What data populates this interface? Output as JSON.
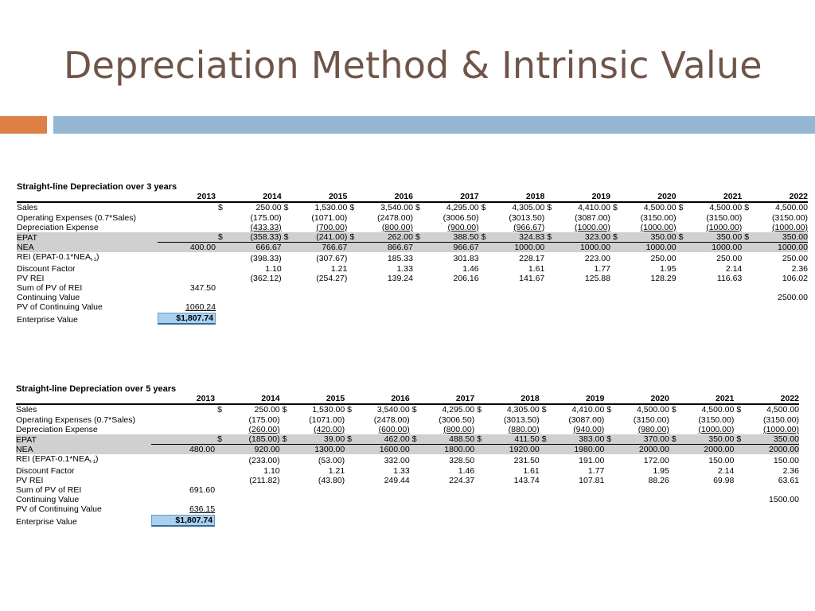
{
  "slide": {
    "title": "Depreciation Method & Intrinsic Value"
  },
  "colors": {
    "title": "#6f5548",
    "accent_orange": "#dd8046",
    "accent_blue": "#94b6d2",
    "shade": "#d0d0d0",
    "highlight": "#a8d0f0"
  },
  "tables": [
    {
      "title": "Straight-line Depreciation over 3 years",
      "years": [
        "2013",
        "2014",
        "2015",
        "2016",
        "2017",
        "2018",
        "2019",
        "2020",
        "2021",
        "2022"
      ],
      "rows": {
        "sales": {
          "label": "Sales",
          "values": [
            "250.00",
            "1,530.00",
            "3,540.00",
            "4,295.00",
            "4,305.00",
            "4,410.00",
            "4,500.00",
            "4,500.00",
            "4,500.00"
          ]
        },
        "opex": {
          "label": "Operating Expenses (0.7*Sales)",
          "values": [
            "(175.00)",
            "(1071.00)",
            "(2478.00)",
            "(3006.50)",
            "(3013.50)",
            "(3087.00)",
            "(3150.00)",
            "(3150.00)",
            "(3150.00)"
          ]
        },
        "dep": {
          "label": "Depreciation Expense",
          "values": [
            "(433.33)",
            "(700.00)",
            "(800.00)",
            "(900.00)",
            "(966.67)",
            "(1000.00)",
            "(1000.00)",
            "(1000.00)",
            "(1000.00)"
          ]
        },
        "epat": {
          "label": "EPAT",
          "values": [
            "(358.33)",
            "(241.00)",
            "262.00",
            "388.50",
            "324.83",
            "323.00",
            "350.00",
            "350.00",
            "350.00"
          ]
        },
        "nea": {
          "label": "NEA",
          "first": "400.00",
          "values": [
            "666.67",
            "766.67",
            "866.67",
            "966.67",
            "1000.00",
            "1000.00",
            "1000.00",
            "1000.00",
            "1000.00"
          ]
        },
        "rei": {
          "label": "REI (EPAT-0.1*NEA",
          "label_sub": "t-1",
          "label_end": ")",
          "values": [
            "(398.33)",
            "(307.67)",
            "185.33",
            "301.83",
            "228.17",
            "223.00",
            "250.00",
            "250.00",
            "250.00"
          ]
        },
        "discount": {
          "label": "Discount Factor",
          "values": [
            "1.10",
            "1.21",
            "1.33",
            "1.46",
            "1.61",
            "1.77",
            "1.95",
            "2.14",
            "2.36"
          ]
        },
        "pvrei": {
          "label": "PV REI",
          "values": [
            "(362.12)",
            "(254.27)",
            "139.24",
            "206.16",
            "141.67",
            "125.88",
            "128.29",
            "116.63",
            "106.02"
          ]
        },
        "sumpv": {
          "label": "Sum of PV of REI",
          "value": "347.50"
        },
        "contval": {
          "label": "Continuing Value",
          "value": "2500.00"
        },
        "pvcont": {
          "label": "PV of Continuing Value",
          "value": "1060.24"
        },
        "ev": {
          "label": "Enterprise Value",
          "value": "$1,807.74"
        }
      }
    },
    {
      "title": "Straight-line Depreciation over 5 years",
      "years": [
        "2013",
        "2014",
        "2015",
        "2016",
        "2017",
        "2018",
        "2019",
        "2020",
        "2021",
        "2022"
      ],
      "rows": {
        "sales": {
          "label": "Sales",
          "values": [
            "250.00",
            "1,530.00",
            "3,540.00",
            "4,295.00",
            "4,305.00",
            "4,410.00",
            "4,500.00",
            "4,500.00",
            "4,500.00"
          ]
        },
        "opex": {
          "label": "Operating Expenses (0.7*Sales)",
          "values": [
            "(175.00)",
            "(1071.00)",
            "(2478.00)",
            "(3006.50)",
            "(3013.50)",
            "(3087.00)",
            "(3150.00)",
            "(3150.00)",
            "(3150.00)"
          ]
        },
        "dep": {
          "label": "Depreciation Expense",
          "values": [
            "(260.00)",
            "(420.00)",
            "(600.00)",
            "(800.00)",
            "(880.00)",
            "(940.00)",
            "(980.00)",
            "(1000.00)",
            "(1000.00)"
          ]
        },
        "epat": {
          "label": "EPAT",
          "values": [
            "(185.00)",
            "39.00",
            "462.00",
            "488.50",
            "411.50",
            "383.00",
            "370.00",
            "350.00",
            "350.00"
          ]
        },
        "nea": {
          "label": "NEA",
          "first": "480.00",
          "values": [
            "920.00",
            "1300.00",
            "1600.00",
            "1800.00",
            "1920.00",
            "1980.00",
            "2000.00",
            "2000.00",
            "2000.00"
          ]
        },
        "rei": {
          "label": "REI (EPAT-0.1*NEA",
          "label_sub": "t-1",
          "label_end": ")",
          "values": [
            "(233.00)",
            "(53.00)",
            "332.00",
            "328.50",
            "231.50",
            "191.00",
            "172.00",
            "150.00",
            "150.00"
          ]
        },
        "discount": {
          "label": "Discount Factor",
          "values": [
            "1.10",
            "1.21",
            "1.33",
            "1.46",
            "1.61",
            "1.77",
            "1.95",
            "2.14",
            "2.36"
          ]
        },
        "pvrei": {
          "label": "PV REI",
          "values": [
            "(211.82)",
            "(43.80)",
            "249.44",
            "224.37",
            "143.74",
            "107.81",
            "88.26",
            "69.98",
            "63.61"
          ]
        },
        "sumpv": {
          "label": "Sum of PV of REI",
          "value": "691.60"
        },
        "contval": {
          "label": "Continuing Value",
          "value": "1500.00"
        },
        "pvcont": {
          "label": "PV of Continuing Value",
          "value": "636.15"
        },
        "ev": {
          "label": "Enterprise Value",
          "value": "$1,807.74"
        }
      }
    }
  ]
}
